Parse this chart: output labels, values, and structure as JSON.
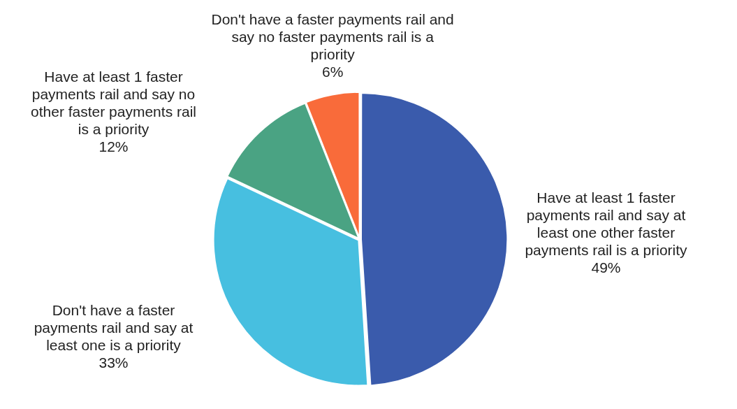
{
  "chart_data": {
    "type": "pie",
    "categories": [
      "Have at least 1 faster payments rail and say at least one other faster payments rail is a priority",
      "Don't have a faster payments rail and say at least one is a priority",
      "Have at least 1 faster payments rail and say no other faster payments rail is a priority",
      "Don't have a faster payments rail and say no faster payments rail is a priority"
    ],
    "values": [
      49,
      33,
      12,
      6
    ],
    "colors": [
      "#3a5bac",
      "#47bfe0",
      "#4aa383",
      "#f96b3a"
    ],
    "value_labels": [
      "49%",
      "33%",
      "12%",
      "6%"
    ]
  }
}
